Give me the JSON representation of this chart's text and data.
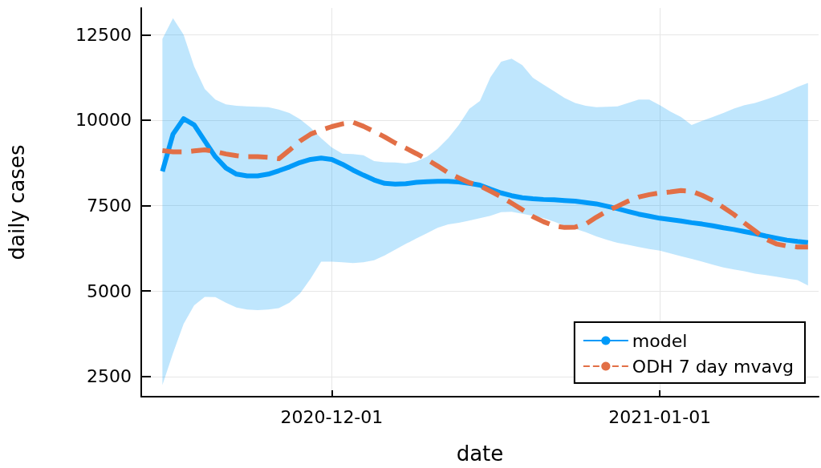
{
  "chart_data": {
    "type": "line",
    "xlabel": "date",
    "ylabel": "daily cases",
    "x": [
      "2020-11-15",
      "2020-11-16",
      "2020-11-17",
      "2020-11-18",
      "2020-11-19",
      "2020-11-20",
      "2020-11-21",
      "2020-11-22",
      "2020-11-23",
      "2020-11-24",
      "2020-11-25",
      "2020-11-26",
      "2020-11-27",
      "2020-11-28",
      "2020-11-29",
      "2020-11-30",
      "2020-12-01",
      "2020-12-02",
      "2020-12-03",
      "2020-12-04",
      "2020-12-05",
      "2020-12-06",
      "2020-12-07",
      "2020-12-08",
      "2020-12-09",
      "2020-12-10",
      "2020-12-11",
      "2020-12-12",
      "2020-12-13",
      "2020-12-14",
      "2020-12-15",
      "2020-12-16",
      "2020-12-17",
      "2020-12-18",
      "2020-12-19",
      "2020-12-20",
      "2020-12-21",
      "2020-12-22",
      "2020-12-23",
      "2020-12-24",
      "2020-12-25",
      "2020-12-26",
      "2020-12-27",
      "2020-12-28",
      "2020-12-29",
      "2020-12-30",
      "2020-12-31",
      "2021-01-01",
      "2021-01-02",
      "2021-01-03",
      "2021-01-04",
      "2021-01-05",
      "2021-01-06",
      "2021-01-07",
      "2021-01-08",
      "2021-01-09",
      "2021-01-10",
      "2021-01-11",
      "2021-01-12",
      "2021-01-13",
      "2021-01-14",
      "2021-01-15"
    ],
    "series": [
      {
        "name": "model",
        "color": "#009af9",
        "line_style": "solid",
        "values": [
          8500,
          9590,
          10040,
          9860,
          9390,
          8930,
          8600,
          8420,
          8370,
          8370,
          8420,
          8520,
          8630,
          8760,
          8850,
          8890,
          8850,
          8710,
          8540,
          8390,
          8250,
          8150,
          8130,
          8140,
          8180,
          8200,
          8210,
          8210,
          8190,
          8150,
          8100,
          7980,
          7870,
          7790,
          7730,
          7700,
          7680,
          7670,
          7650,
          7630,
          7590,
          7550,
          7480,
          7410,
          7330,
          7250,
          7190,
          7130,
          7090,
          7050,
          7000,
          6960,
          6910,
          6850,
          6800,
          6740,
          6680,
          6610,
          6550,
          6490,
          6450,
          6420
        ],
        "lower": [
          2250,
          3180,
          4040,
          4580,
          4830,
          4820,
          4660,
          4520,
          4460,
          4440,
          4460,
          4500,
          4660,
          4930,
          5360,
          5860,
          5860,
          5840,
          5820,
          5840,
          5900,
          6040,
          6210,
          6380,
          6540,
          6690,
          6850,
          6950,
          7000,
          7060,
          7130,
          7200,
          7310,
          7320,
          7260,
          7200,
          7130,
          7030,
          6910,
          6820,
          6720,
          6600,
          6500,
          6410,
          6350,
          6290,
          6230,
          6180,
          6100,
          6020,
          5940,
          5860,
          5770,
          5690,
          5630,
          5580,
          5510,
          5470,
          5420,
          5370,
          5320,
          5160
        ],
        "upper": [
          12380,
          12980,
          12500,
          11570,
          10910,
          10600,
          10460,
          10420,
          10400,
          10390,
          10380,
          10310,
          10210,
          10030,
          9780,
          9470,
          9200,
          9020,
          9010,
          8970,
          8800,
          8770,
          8760,
          8730,
          8790,
          8930,
          9160,
          9470,
          9860,
          10330,
          10560,
          11260,
          11710,
          11800,
          11610,
          11240,
          11040,
          10850,
          10650,
          10500,
          10420,
          10380,
          10390,
          10400,
          10500,
          10600,
          10600,
          10440,
          10250,
          10090,
          9860,
          9980,
          10090,
          10210,
          10340,
          10440,
          10500,
          10600,
          10710,
          10830,
          10970,
          11090
        ]
      },
      {
        "name": "ODH 7 day mvavg",
        "color": "#e26f46",
        "line_style": "dashed",
        "values": [
          9110,
          9070,
          9070,
          9100,
          9130,
          9080,
          9010,
          8960,
          8930,
          8930,
          8910,
          8870,
          9120,
          9390,
          9590,
          9710,
          9810,
          9890,
          9940,
          9820,
          9670,
          9510,
          9330,
          9180,
          9020,
          8850,
          8660,
          8460,
          8310,
          8170,
          8080,
          7920,
          7760,
          7570,
          7380,
          7180,
          7030,
          6910,
          6860,
          6870,
          6960,
          7160,
          7340,
          7480,
          7630,
          7750,
          7820,
          7870,
          7900,
          7940,
          7920,
          7800,
          7650,
          7450,
          7240,
          6990,
          6760,
          6520,
          6380,
          6320,
          6290,
          6290
        ]
      }
    ],
    "xlim": [
      "2020-11-13",
      "2021-01-16"
    ],
    "xticks": [
      "2020-12-01",
      "2021-01-01"
    ],
    "ylim": [
      1910,
      13280
    ],
    "yticks": [
      2500,
      5000,
      7500,
      10000,
      12500
    ],
    "grid": true,
    "legend": "bottom right",
    "marker": "none"
  }
}
